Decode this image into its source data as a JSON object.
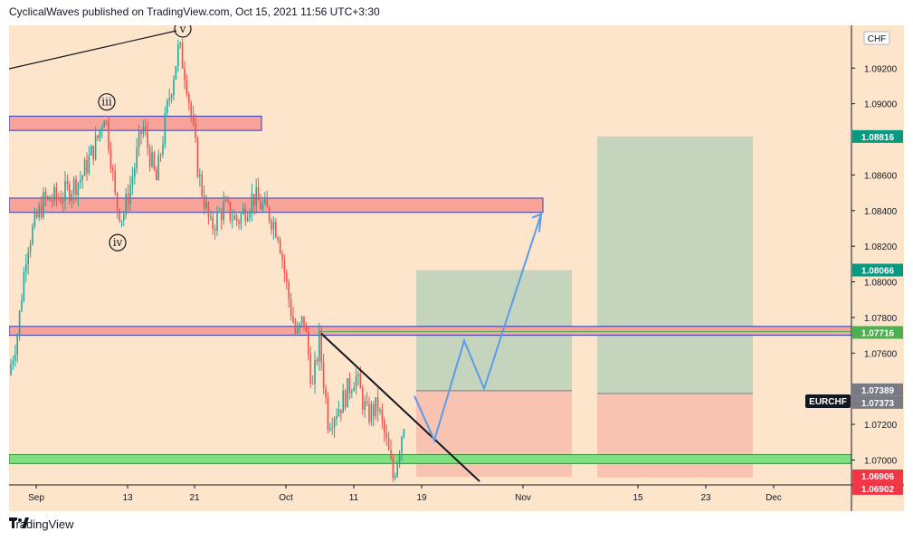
{
  "header": {
    "published_text": "CyclicalWaves published on TradingView.com, Oct 15, 2021 11:56 UTC+3:30"
  },
  "footer": {
    "logo_icon": "tradingview-logo-icon",
    "brand": "TradingView"
  },
  "chart_data": {
    "type": "candlestick",
    "symbol": "EURCHF",
    "currency": "CHF",
    "ylim": [
      1.0686,
      1.0944
    ],
    "y_ticks": [
      "1.09200",
      "1.09000",
      "1.08600",
      "1.08400",
      "1.08200",
      "1.08000",
      "1.07800",
      "1.07600",
      "1.07200",
      "1.07000"
    ],
    "y_tick_values": [
      1.092,
      1.09,
      1.086,
      1.084,
      1.082,
      1.08,
      1.078,
      1.076,
      1.072,
      1.07
    ],
    "x_ticks": [
      "Sep",
      "13",
      "21",
      "Oct",
      "11",
      "19",
      "Nov",
      "15",
      "23",
      "Dec"
    ],
    "price_labels": [
      {
        "value": 1.08816,
        "text": "1.08816",
        "color": "#089981"
      },
      {
        "value": 1.08066,
        "text": "1.08066",
        "color": "#089981"
      },
      {
        "value": 1.07716,
        "text": "1.07716",
        "color": "#4caf50"
      },
      {
        "value": 1.07389,
        "text": "1.07389",
        "color": "#787b86"
      },
      {
        "value": 1.07373,
        "text": "1.07373",
        "color": "#787b86"
      },
      {
        "value": 1.06906,
        "text": "1.06906",
        "color": "#f23645"
      },
      {
        "value": 1.06902,
        "text": "1.06902",
        "color": "#f23645"
      }
    ],
    "wave_labels": [
      "v",
      "iii",
      "iv"
    ],
    "zones": {
      "resistance_high": [
        1.0893,
        1.0885
      ],
      "resistance_mid": [
        1.0847,
        1.0839
      ],
      "resistance_low": [
        1.0775,
        1.077
      ],
      "support": [
        1.0703,
        1.0698
      ]
    },
    "trade_setups": [
      {
        "entry": 1.07389,
        "target": 1.08066,
        "stop": 1.06906
      },
      {
        "entry": 1.07373,
        "target": 1.08816,
        "stop": 1.06902
      }
    ],
    "colors": {
      "background": "#fde5cc",
      "up": "#26a69a",
      "down": "#ef5350",
      "resistance_fill": "#f7a399",
      "support_fill": "#7ee07e",
      "profit_zone": "#c5d5bd",
      "loss_zone": "#f8c3b0",
      "projection": "#5b9bea"
    }
  }
}
